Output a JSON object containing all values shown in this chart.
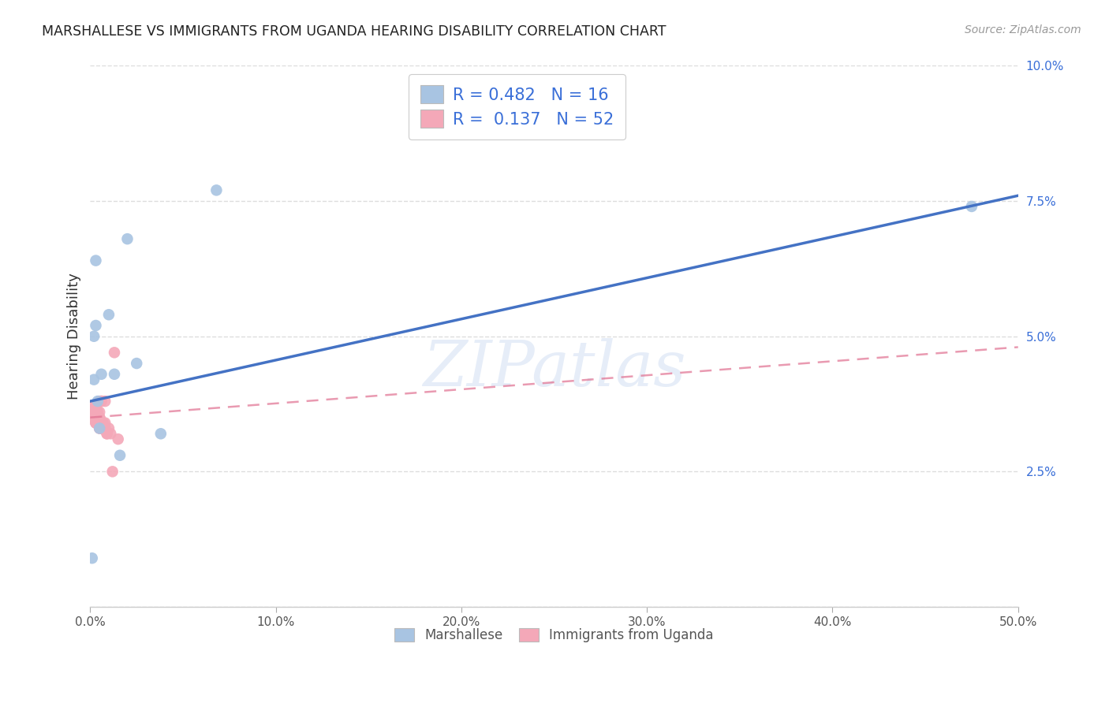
{
  "title": "MARSHALLESE VS IMMIGRANTS FROM UGANDA HEARING DISABILITY CORRELATION CHART",
  "source": "Source: ZipAtlas.com",
  "ylabel": "Hearing Disability",
  "xlim": [
    0,
    0.5
  ],
  "ylim": [
    0,
    0.1
  ],
  "xtick_vals": [
    0.0,
    0.1,
    0.2,
    0.3,
    0.4,
    0.5
  ],
  "xtick_labels": [
    "0.0%",
    "10.0%",
    "20.0%",
    "30.0%",
    "40.0%",
    "50.0%"
  ],
  "ytick_vals": [
    0.0,
    0.025,
    0.05,
    0.075,
    0.1
  ],
  "ytick_labels": [
    "",
    "2.5%",
    "5.0%",
    "7.5%",
    "10.0%"
  ],
  "legend_labels": [
    "Marshallese",
    "Immigrants from Uganda"
  ],
  "marshallese_R": 0.482,
  "marshallese_N": 16,
  "uganda_R": 0.137,
  "uganda_N": 52,
  "marshallese_color": "#a8c4e2",
  "uganda_color": "#f4a8b8",
  "marshallese_line_color": "#4472c4",
  "uganda_line_color": "#e07090",
  "watermark": "ZIPatlas",
  "marshallese_x": [
    0.001,
    0.002,
    0.002,
    0.003,
    0.003,
    0.004,
    0.005,
    0.006,
    0.01,
    0.013,
    0.016,
    0.02,
    0.025,
    0.038,
    0.068,
    0.475
  ],
  "marshallese_y": [
    0.009,
    0.05,
    0.042,
    0.064,
    0.052,
    0.038,
    0.033,
    0.043,
    0.054,
    0.043,
    0.028,
    0.068,
    0.045,
    0.032,
    0.077,
    0.074
  ],
  "uganda_x": [
    0.0005,
    0.001,
    0.001,
    0.002,
    0.002,
    0.002,
    0.002,
    0.002,
    0.003,
    0.003,
    0.003,
    0.003,
    0.003,
    0.003,
    0.003,
    0.003,
    0.003,
    0.004,
    0.004,
    0.004,
    0.004,
    0.004,
    0.004,
    0.004,
    0.005,
    0.005,
    0.005,
    0.005,
    0.005,
    0.005,
    0.005,
    0.005,
    0.005,
    0.006,
    0.006,
    0.006,
    0.006,
    0.006,
    0.006,
    0.007,
    0.007,
    0.007,
    0.008,
    0.008,
    0.008,
    0.009,
    0.009,
    0.01,
    0.011,
    0.012,
    0.013,
    0.015
  ],
  "uganda_y": [
    0.036,
    0.037,
    0.037,
    0.035,
    0.036,
    0.036,
    0.037,
    0.037,
    0.034,
    0.034,
    0.034,
    0.035,
    0.035,
    0.035,
    0.036,
    0.036,
    0.037,
    0.034,
    0.034,
    0.034,
    0.035,
    0.035,
    0.035,
    0.036,
    0.033,
    0.033,
    0.034,
    0.034,
    0.035,
    0.035,
    0.035,
    0.036,
    0.038,
    0.033,
    0.033,
    0.034,
    0.034,
    0.038,
    0.038,
    0.033,
    0.033,
    0.034,
    0.033,
    0.034,
    0.038,
    0.032,
    0.032,
    0.033,
    0.032,
    0.025,
    0.047,
    0.031
  ],
  "marsh_line_x": [
    0.0,
    0.5
  ],
  "marsh_line_y": [
    0.038,
    0.076
  ],
  "ug_line_x": [
    0.0,
    0.5
  ],
  "ug_line_y": [
    0.035,
    0.048
  ]
}
